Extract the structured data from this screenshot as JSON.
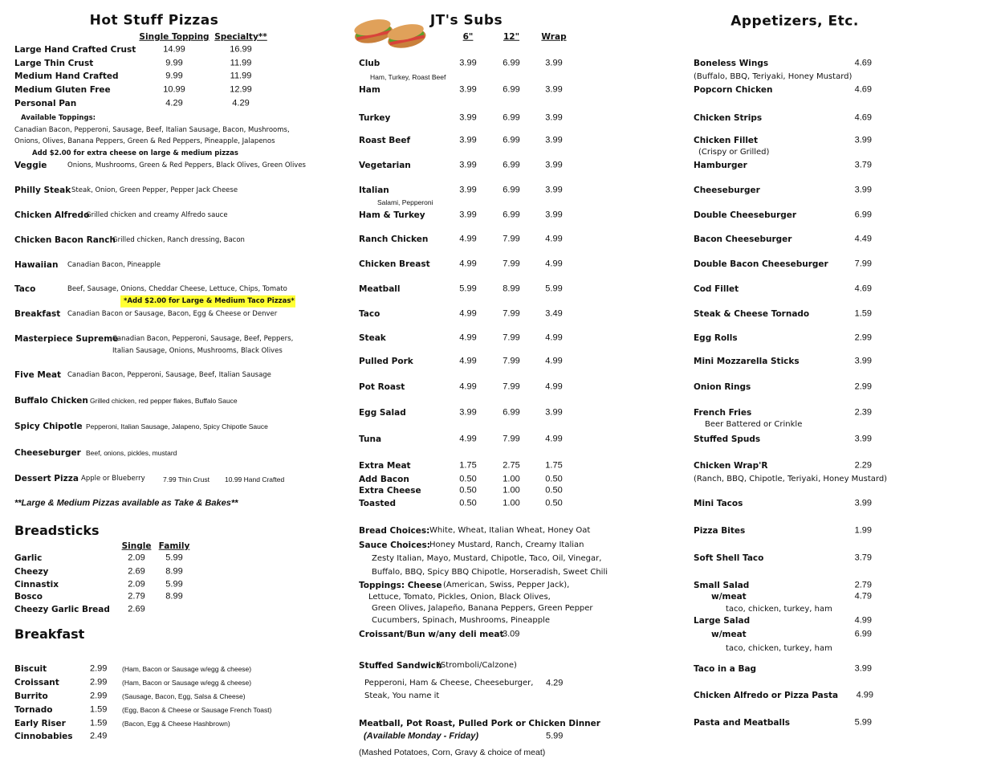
{
  "pizzas": {
    "title": "Hot Stuff Pizzas",
    "col_headers": [
      "Single Topping",
      "Specialty**"
    ],
    "sizes": [
      {
        "name": "Large Hand Crafted Crust",
        "single": "14.99",
        "specialty": "16.99"
      },
      {
        "name": "Large Thin Crust",
        "single": "9.99",
        "specialty": "11.99"
      },
      {
        "name": "Medium Hand Crafted",
        "single": "9.99",
        "specialty": "11.99"
      },
      {
        "name": "Medium Gluten Free",
        "single": "10.99",
        "specialty": "12.99"
      },
      {
        "name": "Personal Pan",
        "single": "4.29",
        "specialty": "4.29"
      }
    ],
    "toppings_label": "Available Toppings:",
    "toppings_lines": [
      "Canadian Bacon, Pepperoni, Sausage, Beef, Italian Sausage, Bacon, Mushrooms,",
      "Onions, Olives, Banana Peppers, Green & Red Peppers, Pineapple, Jalapenos"
    ],
    "extra_cheese_note": "Add $2.00 for extra cheese on large & medium pizzas",
    "specialty": [
      {
        "name": "Veggie",
        "desc": [
          "Onions, Mushrooms, Green & Red Peppers, Black Olives, Green Olives"
        ]
      },
      {
        "name": "Philly Steak",
        "desc": [
          "Steak, Onion, Green Pepper, Pepper Jack Cheese"
        ]
      },
      {
        "name": "Chicken Alfredo",
        "desc": [
          "Grilled chicken and creamy Alfredo sauce"
        ]
      },
      {
        "name": "Chicken Bacon Ranch",
        "desc": [
          "Grilled chicken, Ranch dressing, Bacon"
        ]
      },
      {
        "name": "Hawaiian",
        "desc": [
          "Canadian Bacon, Pineapple"
        ]
      },
      {
        "name": "Taco",
        "desc": [
          "Beef, Sausage, Onions, Cheddar Cheese, Lettuce, Chips, Tomato"
        ]
      },
      {
        "name": "Breakfast",
        "desc": [
          "Canadian Bacon or Sausage, Bacon, Egg & Cheese or Denver"
        ]
      },
      {
        "name": "Masterpiece Supreme",
        "desc": [
          "Canadian Bacon, Pepperoni, Sausage, Beef, Peppers,",
          "Italian Sausage, Onions, Mushrooms, Black Olives"
        ]
      },
      {
        "name": "Five Meat",
        "desc": [
          "Canadian Bacon, Pepperoni, Sausage, Beef, Italian Sausage"
        ]
      },
      {
        "name": "Buffalo Chicken",
        "desc": [
          "Grilled chicken, red pepper flakes, Buffalo Sauce"
        ]
      },
      {
        "name": "Spicy Chipotle",
        "desc": [
          "Pepperoni, Italian Sausage, Jalapeno, Spicy Chipotle Sauce"
        ]
      },
      {
        "name": "Cheeseburger",
        "desc": [
          "Beef, onions, pickles, mustard"
        ]
      },
      {
        "name": "Dessert Pizza",
        "desc": [
          "Apple or Blueberry"
        ]
      }
    ],
    "taco_note": "*Add $2.00 for Large & Medium Taco Pizzas*",
    "highlight_color": "#ffff33",
    "dessert_prices": [
      "7.99 Thin Crust",
      "10.99 Hand Crafted"
    ],
    "take_bake_note": "**Large & Medium Pizzas available as Take & Bakes**"
  },
  "breadsticks": {
    "title": "Breadsticks",
    "col_headers": [
      "Single",
      "Family"
    ],
    "items": [
      {
        "name": "Garlic",
        "single": "2.09",
        "family": "5.99"
      },
      {
        "name": "Cheezy",
        "single": "2.69",
        "family": "8.99"
      },
      {
        "name": "Cinnastix",
        "single": "2.09",
        "family": "5.99"
      },
      {
        "name": "Bosco",
        "single": "2.79",
        "family": "8.99"
      },
      {
        "name": "Cheezy Garlic Bread",
        "single": "2.69",
        "family": ""
      }
    ]
  },
  "breakfast": {
    "title": "Breakfast",
    "items": [
      {
        "name": "Biscuit",
        "price": "2.99",
        "desc": "(Ham, Bacon or Sausage w/egg & cheese)"
      },
      {
        "name": "Croissant",
        "price": "2.99",
        "desc": "(Ham, Bacon or Sausage w/egg & cheese)"
      },
      {
        "name": "Burrito",
        "price": "2.99",
        "desc": "(Sausage, Bacon, Egg, Salsa & Cheese)"
      },
      {
        "name": "Tornado",
        "price": "1.59",
        "desc": "(Egg, Bacon & Cheese or Sausage French Toast)"
      },
      {
        "name": "Early Riser",
        "price": "1.59",
        "desc": "(Bacon, Egg & Cheese Hashbrown)"
      },
      {
        "name": "Cinnobabies",
        "price": "2.49",
        "desc": ""
      }
    ]
  },
  "subs": {
    "title": "JT's Subs",
    "col_headers": [
      "6\"",
      "12\"",
      "Wrap"
    ],
    "items": [
      {
        "name": "Club",
        "p6": "3.99",
        "p12": "6.99",
        "wrap": "3.99",
        "sub": "Ham, Turkey, Roast Beef"
      },
      {
        "name": "Ham",
        "p6": "3.99",
        "p12": "6.99",
        "wrap": "3.99"
      },
      {
        "name": "Turkey",
        "p6": "3.99",
        "p12": "6.99",
        "wrap": "3.99"
      },
      {
        "name": "Roast Beef",
        "p6": "3.99",
        "p12": "6.99",
        "wrap": "3.99"
      },
      {
        "name": "Vegetarian",
        "p6": "3.99",
        "p12": "6.99",
        "wrap": "3.99"
      },
      {
        "name": "Italian",
        "p6": "3.99",
        "p12": "6.99",
        "wrap": "3.99",
        "sub": "Salami, Pepperoni"
      },
      {
        "name": "Ham & Turkey",
        "p6": "3.99",
        "p12": "6.99",
        "wrap": "3.99"
      },
      {
        "name": "Ranch Chicken",
        "p6": "4.99",
        "p12": "7.99",
        "wrap": "4.99"
      },
      {
        "name": "Chicken Breast",
        "p6": "4.99",
        "p12": "7.99",
        "wrap": "4.99"
      },
      {
        "name": "Meatball",
        "p6": "5.99",
        "p12": "8.99",
        "wrap": "5.99"
      },
      {
        "name": "Taco",
        "p6": "4.99",
        "p12": "7.99",
        "wrap": "3.49"
      },
      {
        "name": "Steak",
        "p6": "4.99",
        "p12": "7.99",
        "wrap": "4.99"
      },
      {
        "name": "Pulled Pork",
        "p6": "4.99",
        "p12": "7.99",
        "wrap": "4.99"
      },
      {
        "name": "Pot Roast",
        "p6": "4.99",
        "p12": "7.99",
        "wrap": "4.99"
      },
      {
        "name": "Egg Salad",
        "p6": "3.99",
        "p12": "6.99",
        "wrap": "3.99"
      },
      {
        "name": "Tuna",
        "p6": "4.99",
        "p12": "7.99",
        "wrap": "4.99"
      },
      {
        "name": "Extra Meat",
        "p6": "1.75",
        "p12": "2.75",
        "wrap": "1.75"
      },
      {
        "name": "Add Bacon",
        "p6": "0.50",
        "p12": "1.00",
        "wrap": "0.50"
      },
      {
        "name": "Extra Cheese",
        "p6": "0.50",
        "p12": "1.00",
        "wrap": "0.50"
      },
      {
        "name": "Toasted",
        "p6": "0.50",
        "p12": "1.00",
        "wrap": "0.50"
      }
    ],
    "choices": [
      {
        "label": "Bread Choices:",
        "text": "White, Wheat, Italian Wheat, Honey Oat"
      },
      {
        "label": "Sauce Choices:",
        "text": "Honey Mustard, Ranch, Creamy Italian"
      },
      {
        "label": "",
        "text": "Zesty Italian, Mayo, Mustard, Chipotle, Taco, Oil, Vinegar,"
      },
      {
        "label": "",
        "text": "Buffalo, BBQ, Spicy BBQ Chipotle, Horseradish, Sweet Chili"
      },
      {
        "label": "Toppings:   Cheese",
        "text": "(American, Swiss, Pepper Jack),"
      },
      {
        "label": "",
        "text": "Lettuce, Tomato, Pickles, Onion, Black Olives,"
      },
      {
        "label": "",
        "text": "Green Olives, Jalapeño, Banana Peppers, Green Pepper"
      },
      {
        "label": "",
        "text": "Cucumbers, Spinach, Mushrooms, Pineapple"
      }
    ],
    "croissant": {
      "name": "Croissant/Bun w/any deli meat",
      "price": "3.09"
    },
    "stuffed": {
      "name": "Stuffed Sandwich",
      "paren": "(Stromboli/Calzone)",
      "lines": [
        "Pepperoni, Ham & Cheese, Cheeseburger,",
        "Steak, You name it"
      ],
      "price": "4.29"
    },
    "dinner": {
      "name": "Meatball, Pot Roast, Pulled Pork or Chicken Dinner",
      "availability": "(Available Monday - Friday)",
      "price": "5.99",
      "note": "(Mashed Potatoes, Corn, Gravy & choice of meat)"
    }
  },
  "appetizers": {
    "title": "Appetizers, Etc.",
    "items": [
      {
        "name": "Boneless Wings",
        "price": "4.69",
        "sub": "(Buffalo, BBQ, Teriyaki, Honey Mustard)"
      },
      {
        "name": "Popcorn Chicken",
        "price": "4.69"
      },
      {
        "name": "Chicken Strips",
        "price": "4.69"
      },
      {
        "name": "Chicken Fillet",
        "price": "3.99",
        "sub": "(Crispy or Grilled)"
      },
      {
        "name": "Hamburger",
        "price": "3.79"
      },
      {
        "name": "Cheeseburger",
        "price": "3.99"
      },
      {
        "name": "Double Cheeseburger",
        "price": "6.99"
      },
      {
        "name": "Bacon Cheeseburger",
        "price": "4.49"
      },
      {
        "name": "Double Bacon Cheeseburger",
        "price": "7.99"
      },
      {
        "name": "Cod Fillet",
        "price": "4.69"
      },
      {
        "name": "Steak & Cheese Tornado",
        "price": "1.59"
      },
      {
        "name": "Egg Rolls",
        "price": "2.99"
      },
      {
        "name": "Mini Mozzarella Sticks",
        "price": "3.99"
      },
      {
        "name": "Onion Rings",
        "price": "2.99"
      },
      {
        "name": "French Fries",
        "price": "2.39",
        "sub": "Beer Battered or Crinkle"
      },
      {
        "name": "Stuffed Spuds",
        "price": "3.99"
      },
      {
        "name": "Chicken Wrap'R",
        "price": "2.29",
        "sub": "(Ranch, BBQ, Chipotle, Teriyaki, Honey Mustard)"
      },
      {
        "name": "Mini Tacos",
        "price": "3.99"
      },
      {
        "name": "Pizza Bites",
        "price": "1.99"
      },
      {
        "name": "Soft Shell Taco",
        "price": "3.79"
      },
      {
        "name": "Small Salad",
        "price": "2.79"
      },
      {
        "name": "w/meat",
        "price": "4.79",
        "sub": "taco, chicken, turkey, ham"
      },
      {
        "name": "Large Salad",
        "price": "4.99"
      },
      {
        "name": "w/meat",
        "price": "6.99",
        "sub": "taco, chicken, turkey, ham"
      },
      {
        "name": "Taco in a Bag",
        "price": "3.99"
      },
      {
        "name": "Chicken Alfredo or  Pizza Pasta",
        "price": "4.99"
      },
      {
        "name": "Pasta and Meatballs",
        "price": "5.99"
      }
    ]
  }
}
